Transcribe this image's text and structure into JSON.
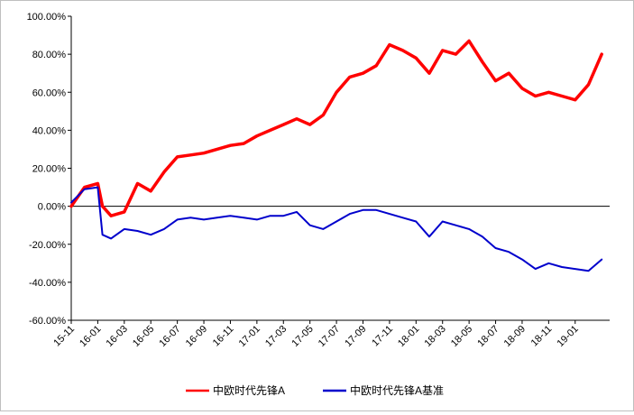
{
  "chart_data": {
    "type": "line",
    "title": "",
    "xlabel": "",
    "ylabel": "",
    "ylim": [
      -60,
      100
    ],
    "y_ticks": [
      "100.00%",
      "80.00%",
      "60.00%",
      "40.00%",
      "20.00%",
      "0.00%",
      "-20.00%",
      "-40.00%",
      "-60.00%"
    ],
    "y_tick_values": [
      100,
      80,
      60,
      40,
      20,
      0,
      -20,
      -40,
      -60
    ],
    "x_ticks": [
      "15-11",
      "16-01",
      "16-03",
      "16-05",
      "16-07",
      "16-09",
      "16-11",
      "17-01",
      "17-03",
      "17-05",
      "17-07",
      "17-09",
      "17-11",
      "18-01",
      "18-03",
      "18-05",
      "18-07",
      "18-09",
      "18-11",
      "19-01"
    ],
    "x_range_months": [
      "15-11",
      "19-03"
    ],
    "grid": false,
    "legend_position": "bottom",
    "series": [
      {
        "name": "中欧时代先锋A",
        "color": "#ff0000",
        "points": [
          [
            "15-11",
            0
          ],
          [
            "15-12",
            10
          ],
          [
            "16-01",
            12
          ],
          [
            "16-01",
            0
          ],
          [
            "16-02",
            -5
          ],
          [
            "16-03",
            -3
          ],
          [
            "16-04",
            12
          ],
          [
            "16-05",
            8
          ],
          [
            "16-06",
            18
          ],
          [
            "16-07",
            26
          ],
          [
            "16-08",
            27
          ],
          [
            "16-09",
            28
          ],
          [
            "16-10",
            30
          ],
          [
            "16-11",
            32
          ],
          [
            "16-12",
            33
          ],
          [
            "17-01",
            37
          ],
          [
            "17-02",
            40
          ],
          [
            "17-03",
            43
          ],
          [
            "17-04",
            46
          ],
          [
            "17-05",
            43
          ],
          [
            "17-06",
            48
          ],
          [
            "17-07",
            60
          ],
          [
            "17-08",
            68
          ],
          [
            "17-09",
            70
          ],
          [
            "17-10",
            74
          ],
          [
            "17-11",
            85
          ],
          [
            "17-12",
            82
          ],
          [
            "18-01",
            78
          ],
          [
            "18-02",
            70
          ],
          [
            "18-03",
            82
          ],
          [
            "18-04",
            80
          ],
          [
            "18-05",
            87
          ],
          [
            "18-06",
            76
          ],
          [
            "18-07",
            66
          ],
          [
            "18-08",
            70
          ],
          [
            "18-09",
            62
          ],
          [
            "18-10",
            58
          ],
          [
            "18-11",
            60
          ],
          [
            "18-12",
            58
          ],
          [
            "19-01",
            56
          ],
          [
            "19-02",
            64
          ],
          [
            "19-03",
            80
          ]
        ]
      },
      {
        "name": "中欧时代先锋A基准",
        "color": "#0000cc",
        "points": [
          [
            "15-11",
            2
          ],
          [
            "15-12",
            9
          ],
          [
            "16-01",
            10
          ],
          [
            "16-01",
            -15
          ],
          [
            "16-02",
            -17
          ],
          [
            "16-03",
            -12
          ],
          [
            "16-04",
            -13
          ],
          [
            "16-05",
            -15
          ],
          [
            "16-06",
            -12
          ],
          [
            "16-07",
            -7
          ],
          [
            "16-08",
            -6
          ],
          [
            "16-09",
            -7
          ],
          [
            "16-10",
            -6
          ],
          [
            "16-11",
            -5
          ],
          [
            "16-12",
            -6
          ],
          [
            "17-01",
            -7
          ],
          [
            "17-02",
            -5
          ],
          [
            "17-03",
            -5
          ],
          [
            "17-04",
            -3
          ],
          [
            "17-05",
            -10
          ],
          [
            "17-06",
            -12
          ],
          [
            "17-07",
            -8
          ],
          [
            "17-08",
            -4
          ],
          [
            "17-09",
            -2
          ],
          [
            "17-10",
            -2
          ],
          [
            "17-11",
            -4
          ],
          [
            "17-12",
            -6
          ],
          [
            "18-01",
            -8
          ],
          [
            "18-02",
            -16
          ],
          [
            "18-03",
            -8
          ],
          [
            "18-04",
            -10
          ],
          [
            "18-05",
            -12
          ],
          [
            "18-06",
            -16
          ],
          [
            "18-07",
            -22
          ],
          [
            "18-08",
            -24
          ],
          [
            "18-09",
            -28
          ],
          [
            "18-10",
            -33
          ],
          [
            "18-11",
            -30
          ],
          [
            "18-12",
            -32
          ],
          [
            "19-01",
            -33
          ],
          [
            "19-02",
            -34
          ],
          [
            "19-03",
            -28
          ]
        ]
      }
    ]
  }
}
